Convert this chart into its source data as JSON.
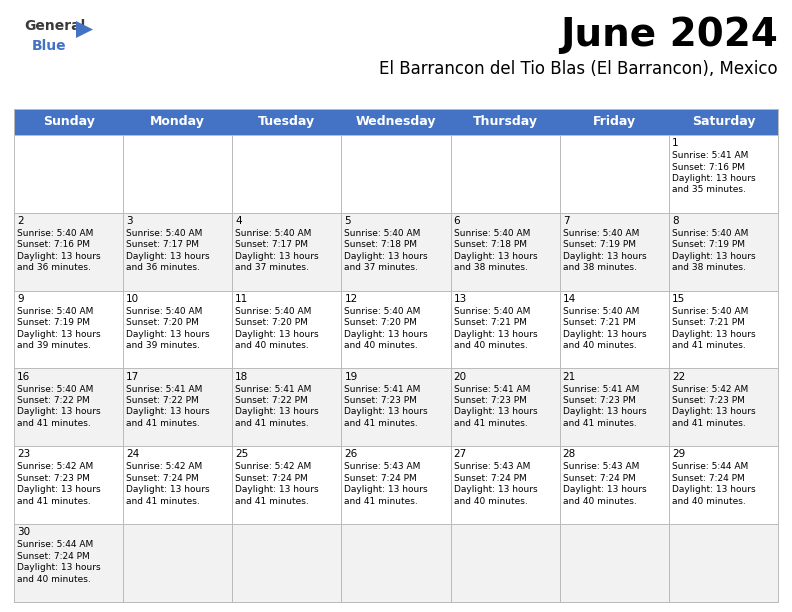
{
  "title": "June 2024",
  "subtitle": "El Barrancon del Tio Blas (El Barrancon), Mexico",
  "header_color": "#4472C4",
  "header_text_color": "#FFFFFF",
  "days_of_week": [
    "Sunday",
    "Monday",
    "Tuesday",
    "Wednesday",
    "Thursday",
    "Friday",
    "Saturday"
  ],
  "cell_bg_even": "#F2F2F2",
  "cell_bg_odd": "#FFFFFF",
  "title_fontsize": 28,
  "subtitle_fontsize": 12,
  "header_fontsize": 9,
  "cell_day_fontsize": 7.5,
  "cell_info_fontsize": 6.5,
  "logo_general_fontsize": 10,
  "logo_blue_fontsize": 10,
  "calendar": [
    [
      null,
      null,
      null,
      null,
      null,
      null,
      {
        "day": "1",
        "sunrise": "5:41 AM",
        "sunset": "7:16 PM",
        "daylight": "13 hours\nand 35 minutes."
      }
    ],
    [
      {
        "day": "2",
        "sunrise": "5:40 AM",
        "sunset": "7:16 PM",
        "daylight": "13 hours\nand 36 minutes."
      },
      {
        "day": "3",
        "sunrise": "5:40 AM",
        "sunset": "7:17 PM",
        "daylight": "13 hours\nand 36 minutes."
      },
      {
        "day": "4",
        "sunrise": "5:40 AM",
        "sunset": "7:17 PM",
        "daylight": "13 hours\nand 37 minutes."
      },
      {
        "day": "5",
        "sunrise": "5:40 AM",
        "sunset": "7:18 PM",
        "daylight": "13 hours\nand 37 minutes."
      },
      {
        "day": "6",
        "sunrise": "5:40 AM",
        "sunset": "7:18 PM",
        "daylight": "13 hours\nand 38 minutes."
      },
      {
        "day": "7",
        "sunrise": "5:40 AM",
        "sunset": "7:19 PM",
        "daylight": "13 hours\nand 38 minutes."
      },
      {
        "day": "8",
        "sunrise": "5:40 AM",
        "sunset": "7:19 PM",
        "daylight": "13 hours\nand 38 minutes."
      }
    ],
    [
      {
        "day": "9",
        "sunrise": "5:40 AM",
        "sunset": "7:19 PM",
        "daylight": "13 hours\nand 39 minutes."
      },
      {
        "day": "10",
        "sunrise": "5:40 AM",
        "sunset": "7:20 PM",
        "daylight": "13 hours\nand 39 minutes."
      },
      {
        "day": "11",
        "sunrise": "5:40 AM",
        "sunset": "7:20 PM",
        "daylight": "13 hours\nand 40 minutes."
      },
      {
        "day": "12",
        "sunrise": "5:40 AM",
        "sunset": "7:20 PM",
        "daylight": "13 hours\nand 40 minutes."
      },
      {
        "day": "13",
        "sunrise": "5:40 AM",
        "sunset": "7:21 PM",
        "daylight": "13 hours\nand 40 minutes."
      },
      {
        "day": "14",
        "sunrise": "5:40 AM",
        "sunset": "7:21 PM",
        "daylight": "13 hours\nand 40 minutes."
      },
      {
        "day": "15",
        "sunrise": "5:40 AM",
        "sunset": "7:21 PM",
        "daylight": "13 hours\nand 41 minutes."
      }
    ],
    [
      {
        "day": "16",
        "sunrise": "5:40 AM",
        "sunset": "7:22 PM",
        "daylight": "13 hours\nand 41 minutes."
      },
      {
        "day": "17",
        "sunrise": "5:41 AM",
        "sunset": "7:22 PM",
        "daylight": "13 hours\nand 41 minutes."
      },
      {
        "day": "18",
        "sunrise": "5:41 AM",
        "sunset": "7:22 PM",
        "daylight": "13 hours\nand 41 minutes."
      },
      {
        "day": "19",
        "sunrise": "5:41 AM",
        "sunset": "7:23 PM",
        "daylight": "13 hours\nand 41 minutes."
      },
      {
        "day": "20",
        "sunrise": "5:41 AM",
        "sunset": "7:23 PM",
        "daylight": "13 hours\nand 41 minutes."
      },
      {
        "day": "21",
        "sunrise": "5:41 AM",
        "sunset": "7:23 PM",
        "daylight": "13 hours\nand 41 minutes."
      },
      {
        "day": "22",
        "sunrise": "5:42 AM",
        "sunset": "7:23 PM",
        "daylight": "13 hours\nand 41 minutes."
      }
    ],
    [
      {
        "day": "23",
        "sunrise": "5:42 AM",
        "sunset": "7:23 PM",
        "daylight": "13 hours\nand 41 minutes."
      },
      {
        "day": "24",
        "sunrise": "5:42 AM",
        "sunset": "7:24 PM",
        "daylight": "13 hours\nand 41 minutes."
      },
      {
        "day": "25",
        "sunrise": "5:42 AM",
        "sunset": "7:24 PM",
        "daylight": "13 hours\nand 41 minutes."
      },
      {
        "day": "26",
        "sunrise": "5:43 AM",
        "sunset": "7:24 PM",
        "daylight": "13 hours\nand 41 minutes."
      },
      {
        "day": "27",
        "sunrise": "5:43 AM",
        "sunset": "7:24 PM",
        "daylight": "13 hours\nand 40 minutes."
      },
      {
        "day": "28",
        "sunrise": "5:43 AM",
        "sunset": "7:24 PM",
        "daylight": "13 hours\nand 40 minutes."
      },
      {
        "day": "29",
        "sunrise": "5:44 AM",
        "sunset": "7:24 PM",
        "daylight": "13 hours\nand 40 minutes."
      }
    ],
    [
      {
        "day": "30",
        "sunrise": "5:44 AM",
        "sunset": "7:24 PM",
        "daylight": "13 hours\nand 40 minutes."
      },
      null,
      null,
      null,
      null,
      null,
      null
    ]
  ]
}
